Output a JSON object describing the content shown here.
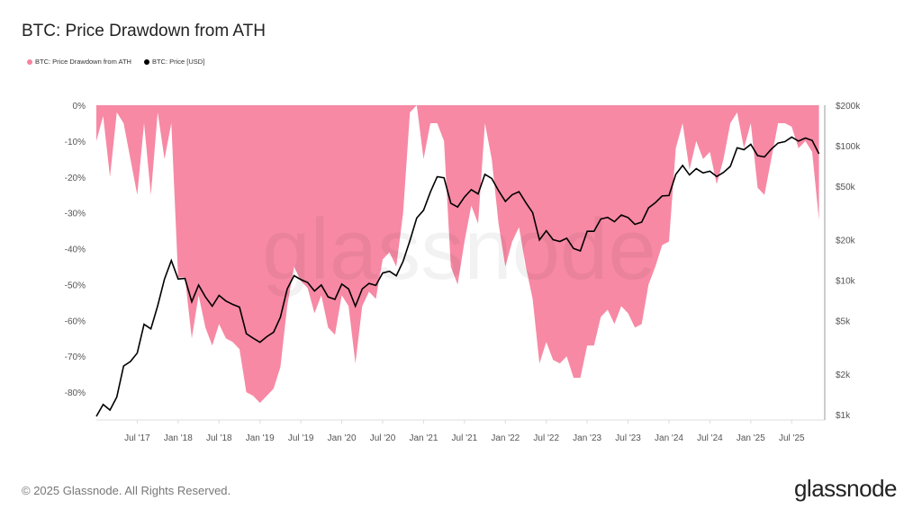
{
  "title": "BTC: Price Drawdown from ATH",
  "footer": "© 2025 Glassnode. All Rights Reserved.",
  "brand": "glassnode",
  "watermark": "glassnode",
  "colors": {
    "drawdown": "#f7839f",
    "price": "#000000"
  },
  "chart_data": {
    "type": "area+line",
    "title": "BTC: Price Drawdown from ATH",
    "legend": {
      "position": "top-left",
      "entries": [
        "BTC: Price Drawdown from ATH",
        "BTC: Price [USD]"
      ]
    },
    "x": {
      "start": "2017-01",
      "end": "2025-11",
      "tick_labels": [
        "Jul '17",
        "Jan '18",
        "Jul '18",
        "Jan '19",
        "Jul '19",
        "Jan '20",
        "Jul '20",
        "Jan '21",
        "Jul '21",
        "Jan '22",
        "Jul '22",
        "Jan '23",
        "Jul '23",
        "Jan '24",
        "Jul '24",
        "Jan '25",
        "Jul '25"
      ]
    },
    "y_left": {
      "ylim": [
        -87.75,
        0
      ],
      "unit": "%",
      "tick_labels": [
        "0%",
        "-10%",
        "-20%",
        "-30%",
        "-40%",
        "-50%",
        "-60%",
        "-70%",
        "-80%"
      ],
      "ticks": [
        0,
        -10,
        -20,
        -30,
        -40,
        -50,
        -60,
        -70,
        -80
      ]
    },
    "y_right": {
      "scale": "log",
      "ylim": [
        912,
        200000
      ],
      "tick_labels": [
        "$200k",
        "$100k",
        "$50k",
        "$20k",
        "$10k",
        "$5k",
        "$2k",
        "$1k"
      ],
      "ticks": [
        200000,
        100000,
        50000,
        20000,
        10000,
        5000,
        2000,
        1000
      ]
    },
    "grid": false,
    "months": [
      "2017-01",
      "2017-02",
      "2017-03",
      "2017-04",
      "2017-05",
      "2017-06",
      "2017-07",
      "2017-08",
      "2017-09",
      "2017-10",
      "2017-11",
      "2017-12",
      "2018-01",
      "2018-02",
      "2018-03",
      "2018-04",
      "2018-05",
      "2018-06",
      "2018-07",
      "2018-08",
      "2018-09",
      "2018-10",
      "2018-11",
      "2018-12",
      "2019-01",
      "2019-02",
      "2019-03",
      "2019-04",
      "2019-05",
      "2019-06",
      "2019-07",
      "2019-08",
      "2019-09",
      "2019-10",
      "2019-11",
      "2019-12",
      "2020-01",
      "2020-02",
      "2020-03",
      "2020-04",
      "2020-05",
      "2020-06",
      "2020-07",
      "2020-08",
      "2020-09",
      "2020-10",
      "2020-11",
      "2020-12",
      "2021-01",
      "2021-02",
      "2021-03",
      "2021-04",
      "2021-05",
      "2021-06",
      "2021-07",
      "2021-08",
      "2021-09",
      "2021-10",
      "2021-11",
      "2021-12",
      "2022-01",
      "2022-02",
      "2022-03",
      "2022-04",
      "2022-05",
      "2022-06",
      "2022-07",
      "2022-08",
      "2022-09",
      "2022-10",
      "2022-11",
      "2022-12",
      "2023-01",
      "2023-02",
      "2023-03",
      "2023-04",
      "2023-05",
      "2023-06",
      "2023-07",
      "2023-08",
      "2023-09",
      "2023-10",
      "2023-11",
      "2023-12",
      "2024-01",
      "2024-02",
      "2024-03",
      "2024-04",
      "2024-05",
      "2024-06",
      "2024-07",
      "2024-08",
      "2024-09",
      "2024-10",
      "2024-11",
      "2024-12",
      "2025-01",
      "2025-02",
      "2025-03",
      "2025-04",
      "2025-05",
      "2025-06",
      "2025-07",
      "2025-08",
      "2025-09",
      "2025-10",
      "2025-11"
    ],
    "series": [
      {
        "name": "BTC: Price Drawdown from ATH",
        "axis": "left",
        "values": [
          -10,
          -3,
          -20,
          -2,
          -5,
          -15,
          -25,
          -5,
          -25,
          -2,
          -15,
          -5,
          -48,
          -48,
          -65,
          -53,
          -62,
          -67,
          -61,
          -65,
          -66,
          -68,
          -80,
          -81,
          -83,
          -81,
          -79,
          -73,
          -56,
          -45,
          -49,
          -51,
          -58,
          -53,
          -62,
          -64,
          -53,
          -56,
          -72,
          -56,
          -52,
          -54,
          -43,
          -41,
          -45,
          -30,
          -2,
          0,
          -15,
          -5,
          -5,
          -10,
          -45,
          -50,
          -38,
          -28,
          -33,
          -5,
          -15,
          -33,
          -45,
          -38,
          -34,
          -45,
          -54,
          -72,
          -66,
          -71,
          -72,
          -70,
          -76,
          -76,
          -67,
          -67,
          -59,
          -57,
          -61,
          -56,
          -58,
          -62,
          -61,
          -50,
          -45,
          -39,
          -38,
          -12,
          -5,
          -18,
          -10,
          -15,
          -13,
          -22,
          -15,
          -5,
          -2,
          -12,
          -5,
          -23,
          -25,
          -15,
          -5,
          -5,
          -6,
          -12,
          -10,
          -13,
          -32
        ]
      },
      {
        "name": "BTC: Price [USD]",
        "axis": "right",
        "values": [
          970,
          1190,
          1080,
          1350,
          2300,
          2480,
          2870,
          4700,
          4340,
          6450,
          10200,
          14000,
          10200,
          10300,
          6900,
          9200,
          7500,
          6400,
          7700,
          7000,
          6600,
          6300,
          4000,
          3700,
          3450,
          3800,
          4100,
          5300,
          8600,
          10800,
          10100,
          9600,
          8300,
          9200,
          7500,
          7200,
          9350,
          8600,
          6400,
          8600,
          9450,
          9140,
          11300,
          11650,
          10780,
          13800,
          19700,
          29000,
          33100,
          45200,
          58800,
          57700,
          37300,
          35000,
          41500,
          47100,
          43800,
          61300,
          57000,
          46300,
          38500,
          43200,
          45500,
          37700,
          31800,
          19900,
          23300,
          20000,
          19400,
          20500,
          17200,
          16500,
          23100,
          23100,
          28500,
          29300,
          27200,
          30500,
          29200,
          26000,
          27000,
          34500,
          37700,
          42300,
          42600,
          61200,
          71300,
          60700,
          67500,
          62700,
          64600,
          59000,
          63300,
          70200,
          96400,
          93400,
          102400,
          84400,
          82500,
          94200,
          104600,
          107100,
          115800,
          108200,
          114000,
          109500,
          87000
        ]
      }
    ]
  }
}
